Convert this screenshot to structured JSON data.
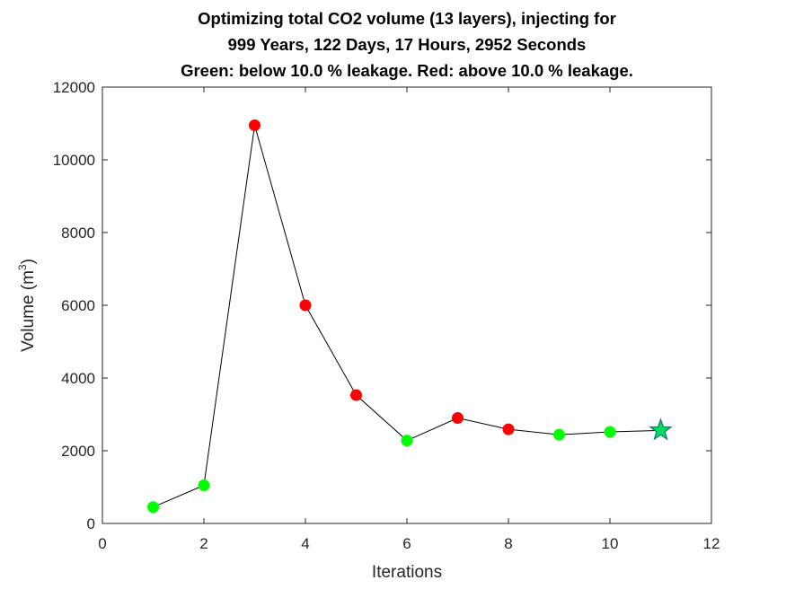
{
  "chart_data": {
    "type": "scatter",
    "title_lines": [
      "Optimizing total CO2 volume (13 layers), injecting for",
      "999 Years, 122 Days, 17 Hours, 2952 Seconds",
      "Green: below 10.0 % leakage. Red: above 10.0 % leakage."
    ],
    "xlabel": "Iterations",
    "ylabel": {
      "text": "Volume (m",
      "superscript": "3",
      "suffix": ")"
    },
    "xlim": [
      0,
      12
    ],
    "ylim": [
      0,
      12000
    ],
    "xticks": [
      0,
      2,
      4,
      6,
      8,
      10,
      12
    ],
    "yticks": [
      0,
      2000,
      4000,
      6000,
      8000,
      10000,
      12000
    ],
    "grid": false,
    "points": [
      {
        "x": 1,
        "y": 450,
        "status": "below"
      },
      {
        "x": 2,
        "y": 1050,
        "status": "below"
      },
      {
        "x": 3,
        "y": 10950,
        "status": "above"
      },
      {
        "x": 4,
        "y": 6000,
        "status": "above"
      },
      {
        "x": 5,
        "y": 3530,
        "status": "above"
      },
      {
        "x": 6,
        "y": 2280,
        "status": "below"
      },
      {
        "x": 7,
        "y": 2900,
        "status": "above"
      },
      {
        "x": 8,
        "y": 2590,
        "status": "above"
      },
      {
        "x": 9,
        "y": 2440,
        "status": "below"
      },
      {
        "x": 10,
        "y": 2520,
        "status": "below"
      }
    ],
    "best": {
      "x": 11,
      "y": 2560,
      "marker": "star"
    },
    "colors": {
      "below": "#00ff00",
      "above": "#ff0000",
      "best_fill": "#00e060",
      "best_edge": "#0e7d7d",
      "line": "#000000",
      "axis": "#262626"
    }
  }
}
